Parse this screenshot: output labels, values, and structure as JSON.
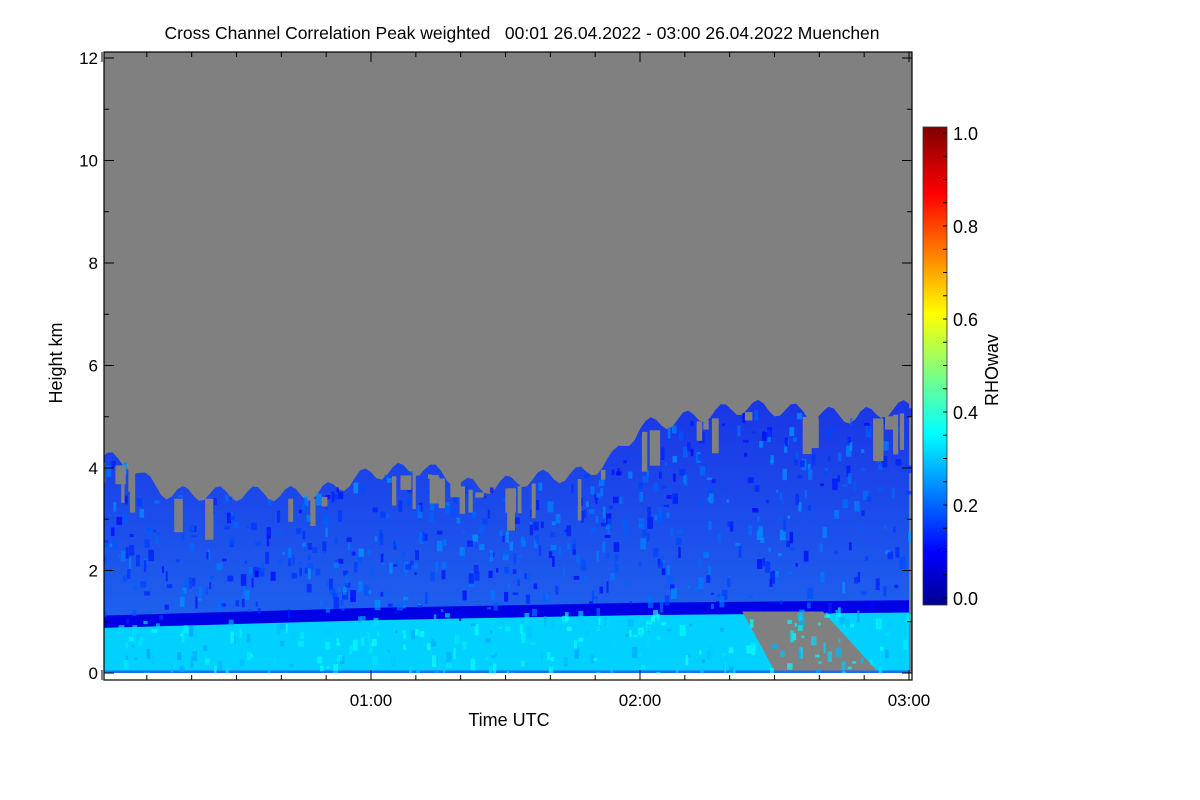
{
  "chart_data": {
    "type": "heatmap",
    "title": "Cross Channel Correlation Peak weighted   00:01 26.04.2022 - 03:00 26.04.2022 Muenchen",
    "xlabel": "Time UTC",
    "ylabel": "Height km",
    "xlim_hours": [
      0.0,
      3.0
    ],
    "ylim": [
      -0.15,
      12.1
    ],
    "x_ticks": [
      {
        "value": 1,
        "label": "01:00"
      },
      {
        "value": 2,
        "label": "02:00"
      },
      {
        "value": 3,
        "label": "03:00"
      }
    ],
    "y_ticks": [
      {
        "value": 0,
        "label": "0"
      },
      {
        "value": 2,
        "label": "2"
      },
      {
        "value": 4,
        "label": "4"
      },
      {
        "value": 6,
        "label": "6"
      },
      {
        "value": 8,
        "label": "8"
      },
      {
        "value": 10,
        "label": "10"
      },
      {
        "value": 12,
        "label": "12"
      }
    ],
    "colorbar": {
      "label": "RHOwav",
      "range": [
        0.0,
        1.0
      ],
      "ticks": [
        {
          "value": 0.0,
          "label": "0.0"
        },
        {
          "value": 0.2,
          "label": "0.2"
        },
        {
          "value": 0.4,
          "label": "0.4"
        },
        {
          "value": 0.6,
          "label": "0.6"
        },
        {
          "value": 0.8,
          "label": "0.8"
        },
        {
          "value": 1.0,
          "label": "1.0"
        }
      ],
      "colormap": "jet"
    },
    "no_data_color": "#808080",
    "signal_top_km": {
      "time_h": [
        0.0,
        0.1,
        0.15,
        0.25,
        0.5,
        0.8,
        1.0,
        1.2,
        1.4,
        1.6,
        1.8,
        1.9,
        2.0,
        2.2,
        2.4,
        2.6,
        2.8,
        3.0
      ],
      "height_km": [
        4.2,
        4.1,
        3.8,
        3.5,
        3.5,
        3.5,
        3.9,
        4.0,
        3.6,
        3.8,
        3.9,
        4.2,
        4.8,
        5.0,
        5.2,
        5.1,
        5.0,
        5.2
      ]
    },
    "low_correlation_layer_km": {
      "time_h": [
        0.0,
        1.0,
        2.0,
        3.0
      ],
      "height_km": [
        1.0,
        1.15,
        1.25,
        1.3
      ],
      "value": 0.1
    },
    "typical_values": {
      "below_layer": 0.33,
      "above_layer": 0.22
    }
  }
}
